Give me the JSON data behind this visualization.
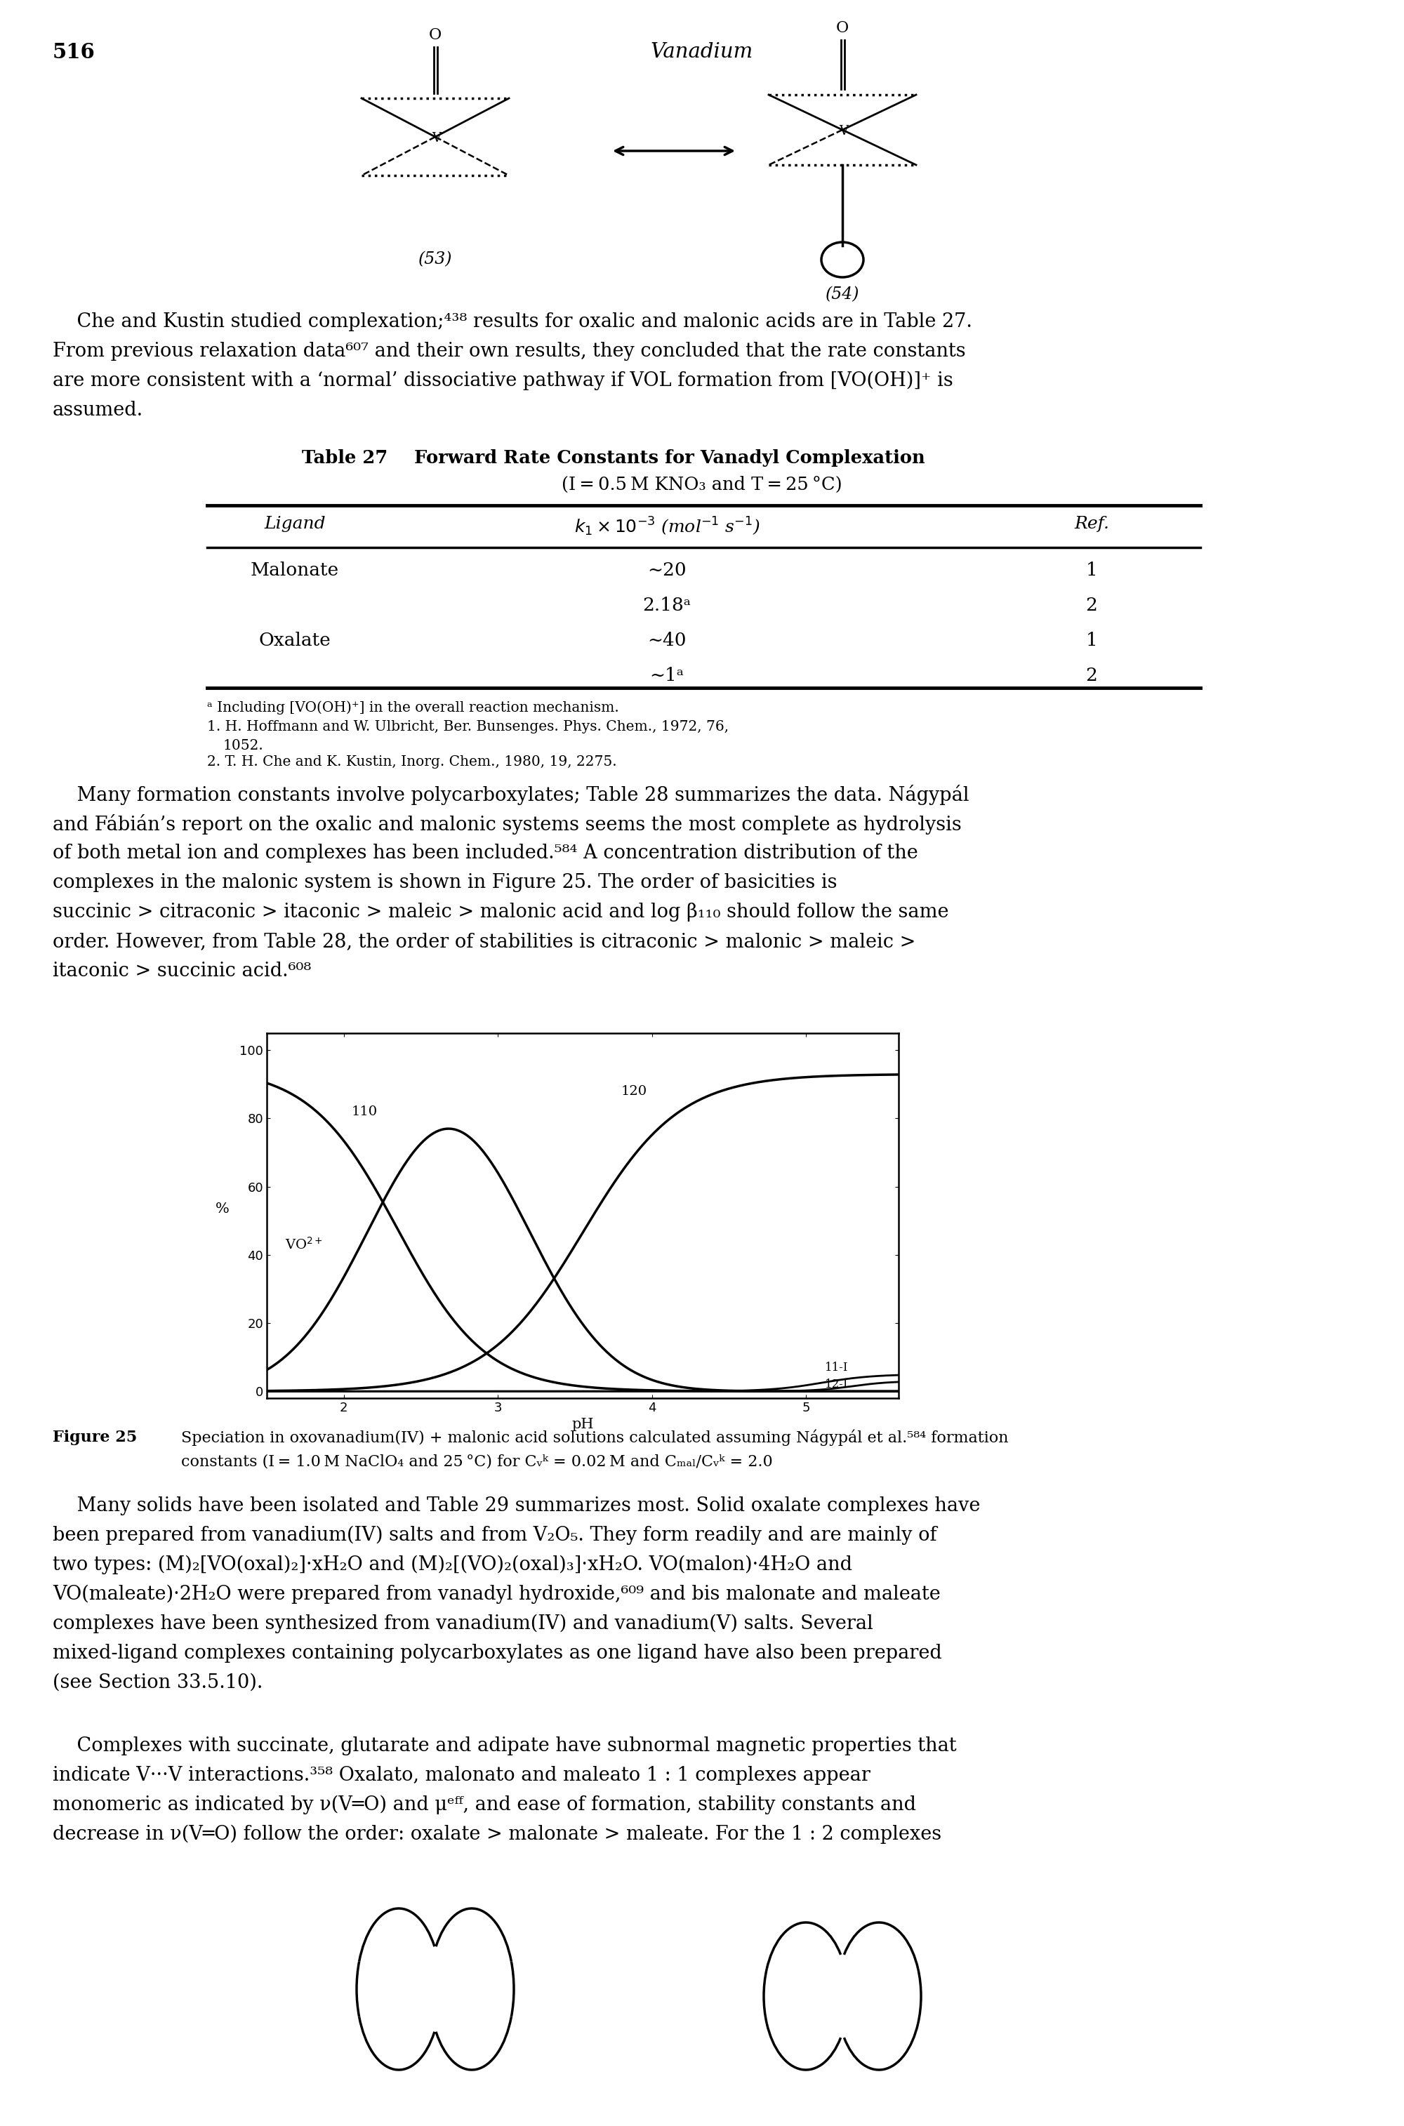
{
  "page_number": "516",
  "page_title": "Vanadium",
  "table_title_bold": "Table 27",
  "table_title_rest": "  Forward Rate Constants for Vanadyl Complexation",
  "table_subtitle": "(I = 0.5 M KNO₃ and T = 25 °C)",
  "col_header_ligand": "Ligand",
  "col_header_k": "k_1 x 10^{-3} (mol^{-1} s^{-1})",
  "col_header_ref": "Ref.",
  "table_rows": [
    [
      "Malonate",
      "~20",
      "1"
    ],
    [
      "",
      "2.18a",
      "2"
    ],
    [
      "Oxalate",
      "~40",
      "1"
    ],
    [
      "",
      "~1a",
      "2"
    ]
  ],
  "footnote_a": "a Including [VO(OH)+] in the overall reaction mechanism.",
  "footnote_1": "1. H. Hoffmann and W. Ulbricht, Ber. Bunsenges. Phys. Chem., 1972, 76,",
  "footnote_1b": "   1052.",
  "footnote_2": "2. T. H. Che and K. Kustin, Inorg. Chem., 1980, 19, 2275.",
  "intro_text_1": "    Che and Kustin studied complexation;",
  "intro_sup1": "438",
  "intro_text_2": " results for oxalic and malonic acids are in Table 27.",
  "intro_line2": "From previous relaxation data",
  "intro_sup2": "607",
  "intro_line2b": " and their own results, they concluded that the rate constants",
  "intro_line3": "are more consistent with a ‘normal’ dissociative pathway if VOL formation from [VO(OH)]",
  "intro_sup3": "+",
  "intro_line3b": " is",
  "intro_line4": "assumed.",
  "body1_line1": "    Many formation constants involve polycarboxylates; Table 28 summarizes the data. Nágypál",
  "body1_line2": "and Fábián’s report on the oxalic and malonic systems seems the most complete as hydrolysis",
  "body1_line3": "of both metal ion and complexes has been included.",
  "body1_sup3": "584",
  "body1_line3b": " A concentration distribution of the",
  "body1_line4": "complexes in the malonic system is shown in Figure 25. The order of basicities is",
  "body1_line5": "succinic > citraconic > itaconic > maleic > malonic acid and log β",
  "body1_sub5": "110",
  "body1_line5b": " should follow the same",
  "body1_line6": "order. However, from Table 28, the order of stabilities is citraconic > malonic > maleic >",
  "body1_line7": "itaconic > succinic acid.",
  "body1_sup7": "608",
  "fig_label": "Figure 25",
  "fig_caption": "  Speciation in oxovanadium(IV) + malonic acid solutions calculated assuming Nágypál et al.",
  "fig_sup": "584",
  "fig_cap2": "formation",
  "fig_cap3": "            constants (I = 1.0 M NaClO₄ and 25 °C) for C",
  "fig_cap3b": "VO",
  "fig_cap3c": " = 0.02 M and C",
  "fig_cap3d": "mal",
  "fig_cap3e": "/C",
  "fig_cap3f": "VO",
  "fig_cap3g": " = 2.0",
  "body2_l1": "    Many solids have been isolated and Table 29 summarizes most. Solid oxalate complexes have",
  "body2_l2": "been prepared from vanadium(IV) salts and from V₂O₅. They form readily and are mainly of",
  "body2_l3": "two types: (M)₂[VO(oxal)₂]·xH₂O and (M)₂[(VO)₂(oxal)₃]·xH₂O. VO(malon)·4H₂O and",
  "body2_l4": "VO(maleate)·2H₂O were prepared from vanadyl hydroxide,",
  "body2_sup4": "609",
  "body2_l4b": " and bis malonate and maleate",
  "body2_l5": "complexes have been synthesized from vanadium(IV) and vanadium(V) salts. Several",
  "body2_l6": "mixed-ligand complexes containing polycarboxylates as one ligand have also been prepared",
  "body2_l7": "(see Section 33.5.10).",
  "body3_l1": "    Complexes with succinate, glutarate and adipate have subnormal magnetic properties that",
  "body3_l2": "indicate V···V interactions.",
  "body3_sup2": "358",
  "body3_l2b": " Oxalato, malonato and maleato 1 : 1 complexes appear",
  "body3_l3": "monomeric as indicated by ν(V═O) and μ",
  "body3_l3b": "eff",
  "body3_l3c": ", and ease of formation, stability constants and",
  "body3_l4": "decrease in ν(V═O) follow the order: oxalate > malonate > maleate. For the 1 : 2 complexes"
}
